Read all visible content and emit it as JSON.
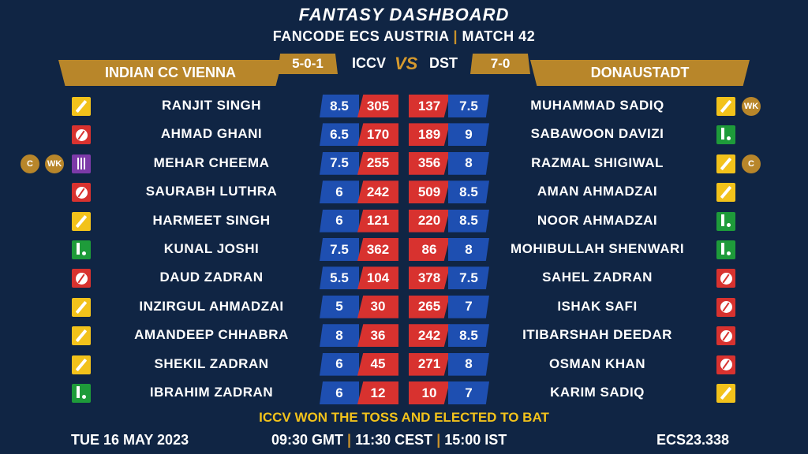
{
  "header": {
    "title": "FANTASY DASHBOARD",
    "subtitle_part1": "FANCODE ECS AUSTRIA",
    "subtitle_sep": "|",
    "subtitle_part2": "MATCH 42"
  },
  "teams": {
    "left": {
      "name": "INDIAN CC VIENNA",
      "abbr": "ICCV",
      "record": "5-0-1"
    },
    "right": {
      "name": "DONAUSTADT",
      "abbr": "DST",
      "record": "7-0"
    },
    "vs_label": "VS"
  },
  "colors": {
    "background": "#102544",
    "gold": "#b8862a",
    "credit_blue": "#1e4fb1",
    "points_red": "#d8322f",
    "batter_yellow": "#f2c21b",
    "allrounder_green": "#1e9b3a",
    "keeper_purple": "#7c3aa8"
  },
  "rows": [
    {
      "left": {
        "name": "RANJIT SINGH",
        "credit": "8.5",
        "points": "305",
        "role": "batter-icon"
      },
      "right": {
        "name": "MUHAMMAD SADIQ",
        "credit": "7.5",
        "points": "137",
        "role": "batter-icon",
        "badges": [
          "WK"
        ]
      }
    },
    {
      "left": {
        "name": "AHMAD GHANI",
        "credit": "6.5",
        "points": "170",
        "role": "bowler-icon"
      },
      "right": {
        "name": "SABAWOON DAVIZI",
        "credit": "9",
        "points": "189",
        "role": "allrounder-icon"
      }
    },
    {
      "left": {
        "name": "MEHAR CHEEMA",
        "credit": "7.5",
        "points": "255",
        "role": "wicketkeeper-icon",
        "badges": [
          "C",
          "WK"
        ]
      },
      "right": {
        "name": "RAZMAL SHIGIWAL",
        "credit": "8",
        "points": "356",
        "role": "batter-icon",
        "badges": [
          "C"
        ]
      }
    },
    {
      "left": {
        "name": "SAURABH LUTHRA",
        "credit": "6",
        "points": "242",
        "role": "bowler-icon"
      },
      "right": {
        "name": "AMAN AHMADZAI",
        "credit": "8.5",
        "points": "509",
        "role": "batter-icon"
      }
    },
    {
      "left": {
        "name": "HARMEET SINGH",
        "credit": "6",
        "points": "121",
        "role": "batter-icon"
      },
      "right": {
        "name": "NOOR AHMADZAI",
        "credit": "8.5",
        "points": "220",
        "role": "allrounder-icon"
      }
    },
    {
      "left": {
        "name": "KUNAL JOSHI",
        "credit": "7.5",
        "points": "362",
        "role": "allrounder-icon"
      },
      "right": {
        "name": "MOHIBULLAH SHENWARI",
        "credit": "8",
        "points": "86",
        "role": "allrounder-icon"
      }
    },
    {
      "left": {
        "name": "DAUD ZADRAN",
        "credit": "5.5",
        "points": "104",
        "role": "bowler-icon"
      },
      "right": {
        "name": "SAHEL ZADRAN",
        "credit": "7.5",
        "points": "378",
        "role": "bowler-icon"
      }
    },
    {
      "left": {
        "name": "INZIRGUL AHMADZAI",
        "credit": "5",
        "points": "30",
        "role": "batter-icon"
      },
      "right": {
        "name": "ISHAK SAFI",
        "credit": "7",
        "points": "265",
        "role": "bowler-icon"
      }
    },
    {
      "left": {
        "name": "AMANDEEP CHHABRA",
        "credit": "8",
        "points": "36",
        "role": "batter-icon"
      },
      "right": {
        "name": "ITIBARSHAH DEEDAR",
        "credit": "8.5",
        "points": "242",
        "role": "bowler-icon"
      }
    },
    {
      "left": {
        "name": "SHEKIL ZADRAN",
        "credit": "6",
        "points": "45",
        "role": "batter-icon"
      },
      "right": {
        "name": "OSMAN KHAN",
        "credit": "8",
        "points": "271",
        "role": "bowler-icon"
      }
    },
    {
      "left": {
        "name": "IBRAHIM ZADRAN",
        "credit": "6",
        "points": "12",
        "role": "allrounder-icon"
      },
      "right": {
        "name": "KARIM SADIQ",
        "credit": "7",
        "points": "10",
        "role": "batter-icon"
      }
    }
  ],
  "footer": {
    "toss": "ICCV WON THE TOSS AND ELECTED TO BAT",
    "date": "TUE 16 MAY 2023",
    "time_gmt": "09:30 GMT",
    "time_cest": "11:30 CEST",
    "time_ist": "15:00 IST",
    "time_sep": "|",
    "code": "ECS23.338"
  }
}
